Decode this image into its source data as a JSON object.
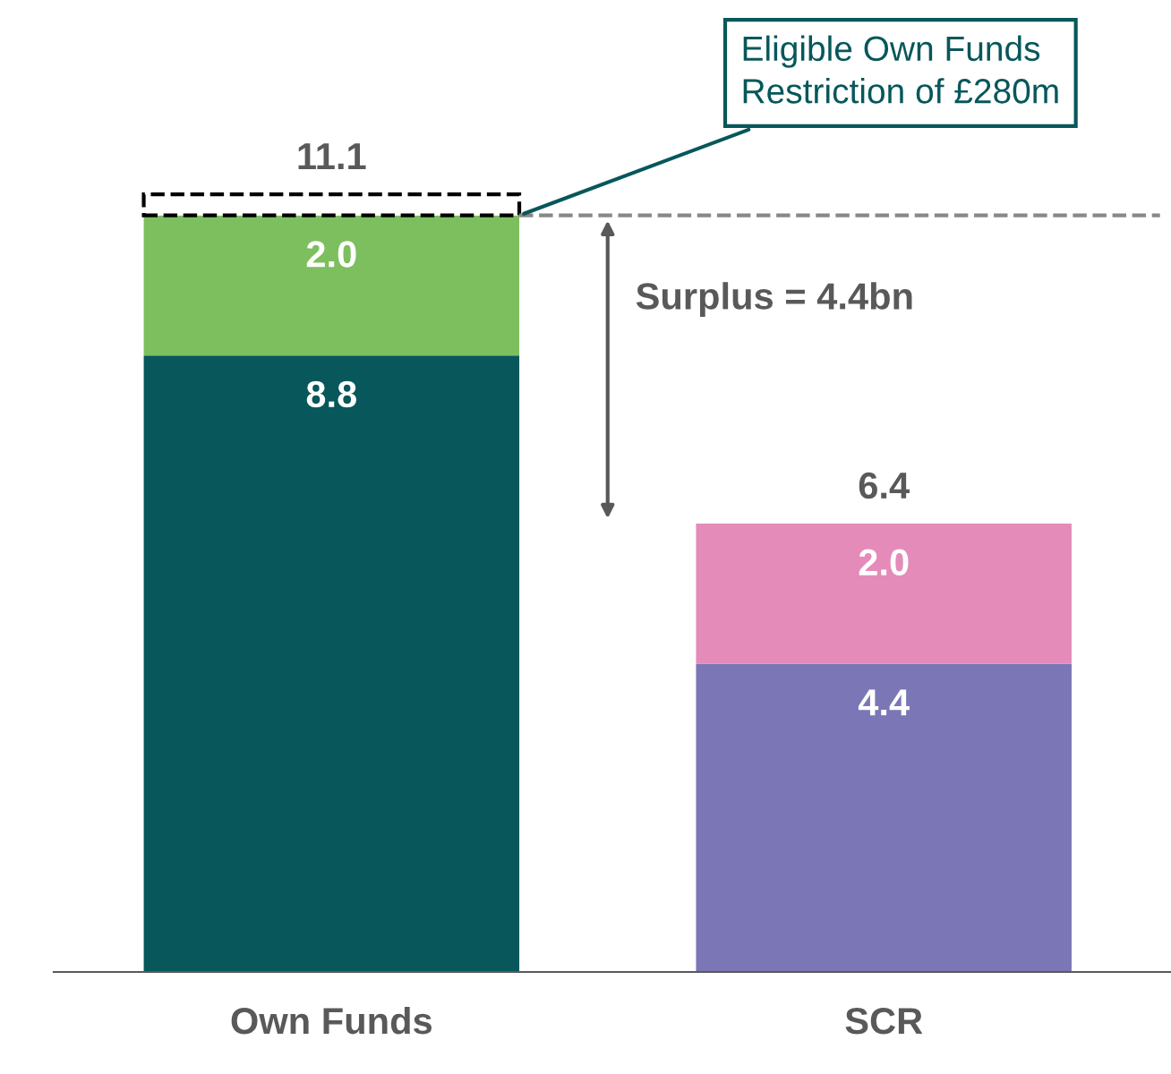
{
  "chart_data": {
    "type": "bar",
    "stacked": true,
    "categories": [
      "Own Funds",
      "SCR"
    ],
    "series": [
      {
        "colors": [
          "#07575b",
          "#7b76b6"
        ],
        "values": [
          8.8,
          4.4
        ],
        "value_labels": [
          "8.8",
          "4.4"
        ]
      },
      {
        "color": "#7dbf5e",
        "values": [
          2.0,
          null
        ],
        "value_labels": [
          "2.0",
          null
        ]
      },
      {
        "color": "#e48bba",
        "values": [
          null,
          2.0
        ],
        "value_labels": [
          null,
          "2.0"
        ]
      },
      {
        "color": "#ffffff",
        "values": [
          0.3,
          null
        ],
        "value_labels": [
          null,
          null
        ],
        "line_style": "dashed"
      }
    ],
    "totals": [
      "11.1",
      "6.4"
    ],
    "ref_lines": [
      {
        "axis": "y",
        "value": 10.8,
        "color": "#888888",
        "line_style": "dashed"
      }
    ],
    "annotations": [
      "Eligible Own Funds\nRestriction of £280m",
      "Surplus = 4.4bn"
    ]
  }
}
